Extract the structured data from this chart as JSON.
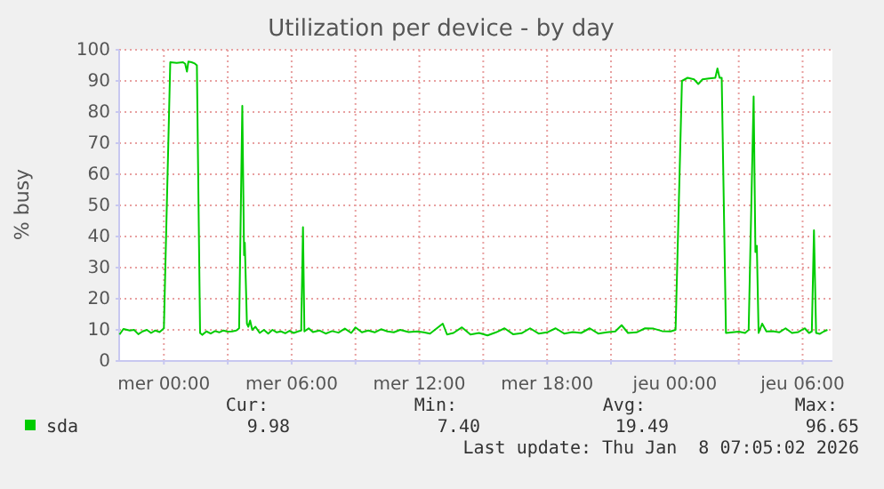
{
  "chart_data": {
    "type": "line",
    "title": "Utilization per device - by day",
    "ylabel": "% busy",
    "xlim": [
      "2026-01-06T21:54",
      "2026-01-08T07:24"
    ],
    "ylim": [
      0,
      100
    ],
    "xticks": [
      {
        "value": "2026-01-07T00:00",
        "label": "mer 00:00"
      },
      {
        "value": "2026-01-07T03:00",
        "label": null
      },
      {
        "value": "2026-01-07T06:00",
        "label": "mer 06:00"
      },
      {
        "value": "2026-01-07T09:00",
        "label": null
      },
      {
        "value": "2026-01-07T12:00",
        "label": "mer 12:00"
      },
      {
        "value": "2026-01-07T15:00",
        "label": null
      },
      {
        "value": "2026-01-07T18:00",
        "label": "mer 18:00"
      },
      {
        "value": "2026-01-07T21:00",
        "label": null
      },
      {
        "value": "2026-01-08T00:00",
        "label": "jeu 00:00"
      },
      {
        "value": "2026-01-08T03:00",
        "label": null
      },
      {
        "value": "2026-01-08T06:00",
        "label": "jeu 06:00"
      }
    ],
    "yticks": [
      0,
      10,
      20,
      30,
      40,
      50,
      60,
      70,
      80,
      90,
      100
    ],
    "grid": true,
    "legend": "bottom",
    "marker": "none",
    "line_style": "solid",
    "series": [
      {
        "name": "sda",
        "color": "#00cc00",
        "x": [
          "2026-01-06T21:55",
          "2026-01-06T22:06",
          "2026-01-06T22:24",
          "2026-01-06T22:36",
          "2026-01-06T22:48",
          "2026-01-06T23:00",
          "2026-01-06T23:12",
          "2026-01-06T23:24",
          "2026-01-06T23:36",
          "2026-01-06T23:48",
          "2026-01-07T00:00",
          "2026-01-07T00:18",
          "2026-01-07T00:36",
          "2026-01-07T00:54",
          "2026-01-07T01:00",
          "2026-01-07T01:05",
          "2026-01-07T01:09",
          "2026-01-07T01:18",
          "2026-01-07T01:27",
          "2026-01-07T01:33",
          "2026-01-07T01:42",
          "2026-01-07T01:48",
          "2026-01-07T02:00",
          "2026-01-07T02:12",
          "2026-01-07T02:24",
          "2026-01-07T02:36",
          "2026-01-07T02:48",
          "2026-01-07T03:00",
          "2026-01-07T03:12",
          "2026-01-07T03:24",
          "2026-01-07T03:32",
          "2026-01-07T03:41",
          "2026-01-07T03:46",
          "2026-01-07T03:48",
          "2026-01-07T03:54",
          "2026-01-07T03:58",
          "2026-01-07T04:03",
          "2026-01-07T04:09",
          "2026-01-07T04:18",
          "2026-01-07T04:30",
          "2026-01-07T04:42",
          "2026-01-07T04:54",
          "2026-01-07T05:06",
          "2026-01-07T05:18",
          "2026-01-07T05:30",
          "2026-01-07T05:42",
          "2026-01-07T05:54",
          "2026-01-07T06:06",
          "2026-01-07T06:18",
          "2026-01-07T06:27",
          "2026-01-07T06:32",
          "2026-01-07T06:36",
          "2026-01-07T06:48",
          "2026-01-07T07:00",
          "2026-01-07T07:18",
          "2026-01-07T07:36",
          "2026-01-07T07:54",
          "2026-01-07T08:12",
          "2026-01-07T08:30",
          "2026-01-07T08:48",
          "2026-01-07T09:00",
          "2026-01-07T09:18",
          "2026-01-07T09:36",
          "2026-01-07T09:54",
          "2026-01-07T10:12",
          "2026-01-07T10:30",
          "2026-01-07T10:48",
          "2026-01-07T11:06",
          "2026-01-07T11:30",
          "2026-01-07T11:54",
          "2026-01-07T12:12",
          "2026-01-07T12:30",
          "2026-01-07T13:06",
          "2026-01-07T13:18",
          "2026-01-07T13:36",
          "2026-01-07T14:00",
          "2026-01-07T14:24",
          "2026-01-07T14:48",
          "2026-01-07T15:12",
          "2026-01-07T15:36",
          "2026-01-07T16:00",
          "2026-01-07T16:24",
          "2026-01-07T16:48",
          "2026-01-07T17:12",
          "2026-01-07T17:36",
          "2026-01-07T18:00",
          "2026-01-07T18:24",
          "2026-01-07T18:48",
          "2026-01-07T19:12",
          "2026-01-07T19:36",
          "2026-01-07T20:00",
          "2026-01-07T20:24",
          "2026-01-07T20:48",
          "2026-01-07T21:12",
          "2026-01-07T21:30",
          "2026-01-07T21:48",
          "2026-01-07T22:12",
          "2026-01-07T22:36",
          "2026-01-07T23:00",
          "2026-01-07T23:24",
          "2026-01-07T23:48",
          "2026-01-08T00:02",
          "2026-01-08T00:20",
          "2026-01-08T00:36",
          "2026-01-08T00:54",
          "2026-01-08T01:06",
          "2026-01-08T01:18",
          "2026-01-08T01:36",
          "2026-01-08T01:54",
          "2026-01-08T02:00",
          "2026-01-08T02:06",
          "2026-01-08T02:12",
          "2026-01-08T02:24",
          "2026-01-08T02:42",
          "2026-01-08T03:00",
          "2026-01-08T03:18",
          "2026-01-08T03:28",
          "2026-01-08T03:42",
          "2026-01-08T03:47",
          "2026-01-08T03:51",
          "2026-01-08T03:56",
          "2026-01-08T04:06",
          "2026-01-08T04:18",
          "2026-01-08T04:36",
          "2026-01-08T04:54",
          "2026-01-08T05:12",
          "2026-01-08T05:30",
          "2026-01-08T05:48",
          "2026-01-08T06:06",
          "2026-01-08T06:18",
          "2026-01-08T06:26",
          "2026-01-08T06:32",
          "2026-01-08T06:38",
          "2026-01-08T06:48",
          "2026-01-08T07:00",
          "2026-01-08T07:10"
        ],
        "values": [
          8.5,
          10.3,
          9.8,
          10,
          8.6,
          9.5,
          10,
          9,
          9.8,
          9.3,
          10.5,
          96,
          95.8,
          96,
          95.5,
          93,
          96.2,
          96,
          95.6,
          95,
          9,
          8.4,
          9.5,
          8.8,
          9.6,
          9.2,
          9.8,
          9.4,
          9.5,
          9.8,
          10.5,
          82,
          34,
          38,
          12,
          11,
          13,
          10,
          11,
          9,
          10,
          8.8,
          10,
          9.2,
          9.5,
          8.9,
          9.7,
          9,
          9.5,
          9.8,
          43,
          9.5,
          10.5,
          9.3,
          9.8,
          8.8,
          9.6,
          9.1,
          10.4,
          9,
          10.8,
          9.2,
          9.8,
          9.2,
          10.2,
          9.5,
          9.2,
          10,
          9.3,
          9.5,
          9.2,
          8.8,
          12,
          8.5,
          9,
          10.8,
          8.5,
          9,
          8.2,
          9.2,
          10.5,
          8.6,
          8.9,
          10.5,
          8.8,
          9.2,
          10.5,
          8.8,
          9.3,
          9,
          10.5,
          8.8,
          9.2,
          9.5,
          11.5,
          9,
          9.2,
          10.5,
          10.4,
          9.6,
          9.5,
          10,
          90,
          91,
          90.5,
          89,
          90.5,
          90.8,
          91,
          94,
          91,
          91,
          9,
          9.2,
          9.4,
          9,
          10,
          85,
          35,
          37,
          9,
          12,
          9.5,
          9.6,
          9.2,
          10.5,
          9,
          9.3,
          10.5,
          9,
          9.5,
          42,
          9,
          8.7,
          9.5,
          10
        ]
      }
    ],
    "annotations": [
      "Cur:",
      "Min:",
      "Avg:",
      "Max:",
      "9.98",
      "7.40",
      "19.49",
      "96.65",
      "Last update: Thu Jan  8 07:05:02 2026"
    ]
  }
}
